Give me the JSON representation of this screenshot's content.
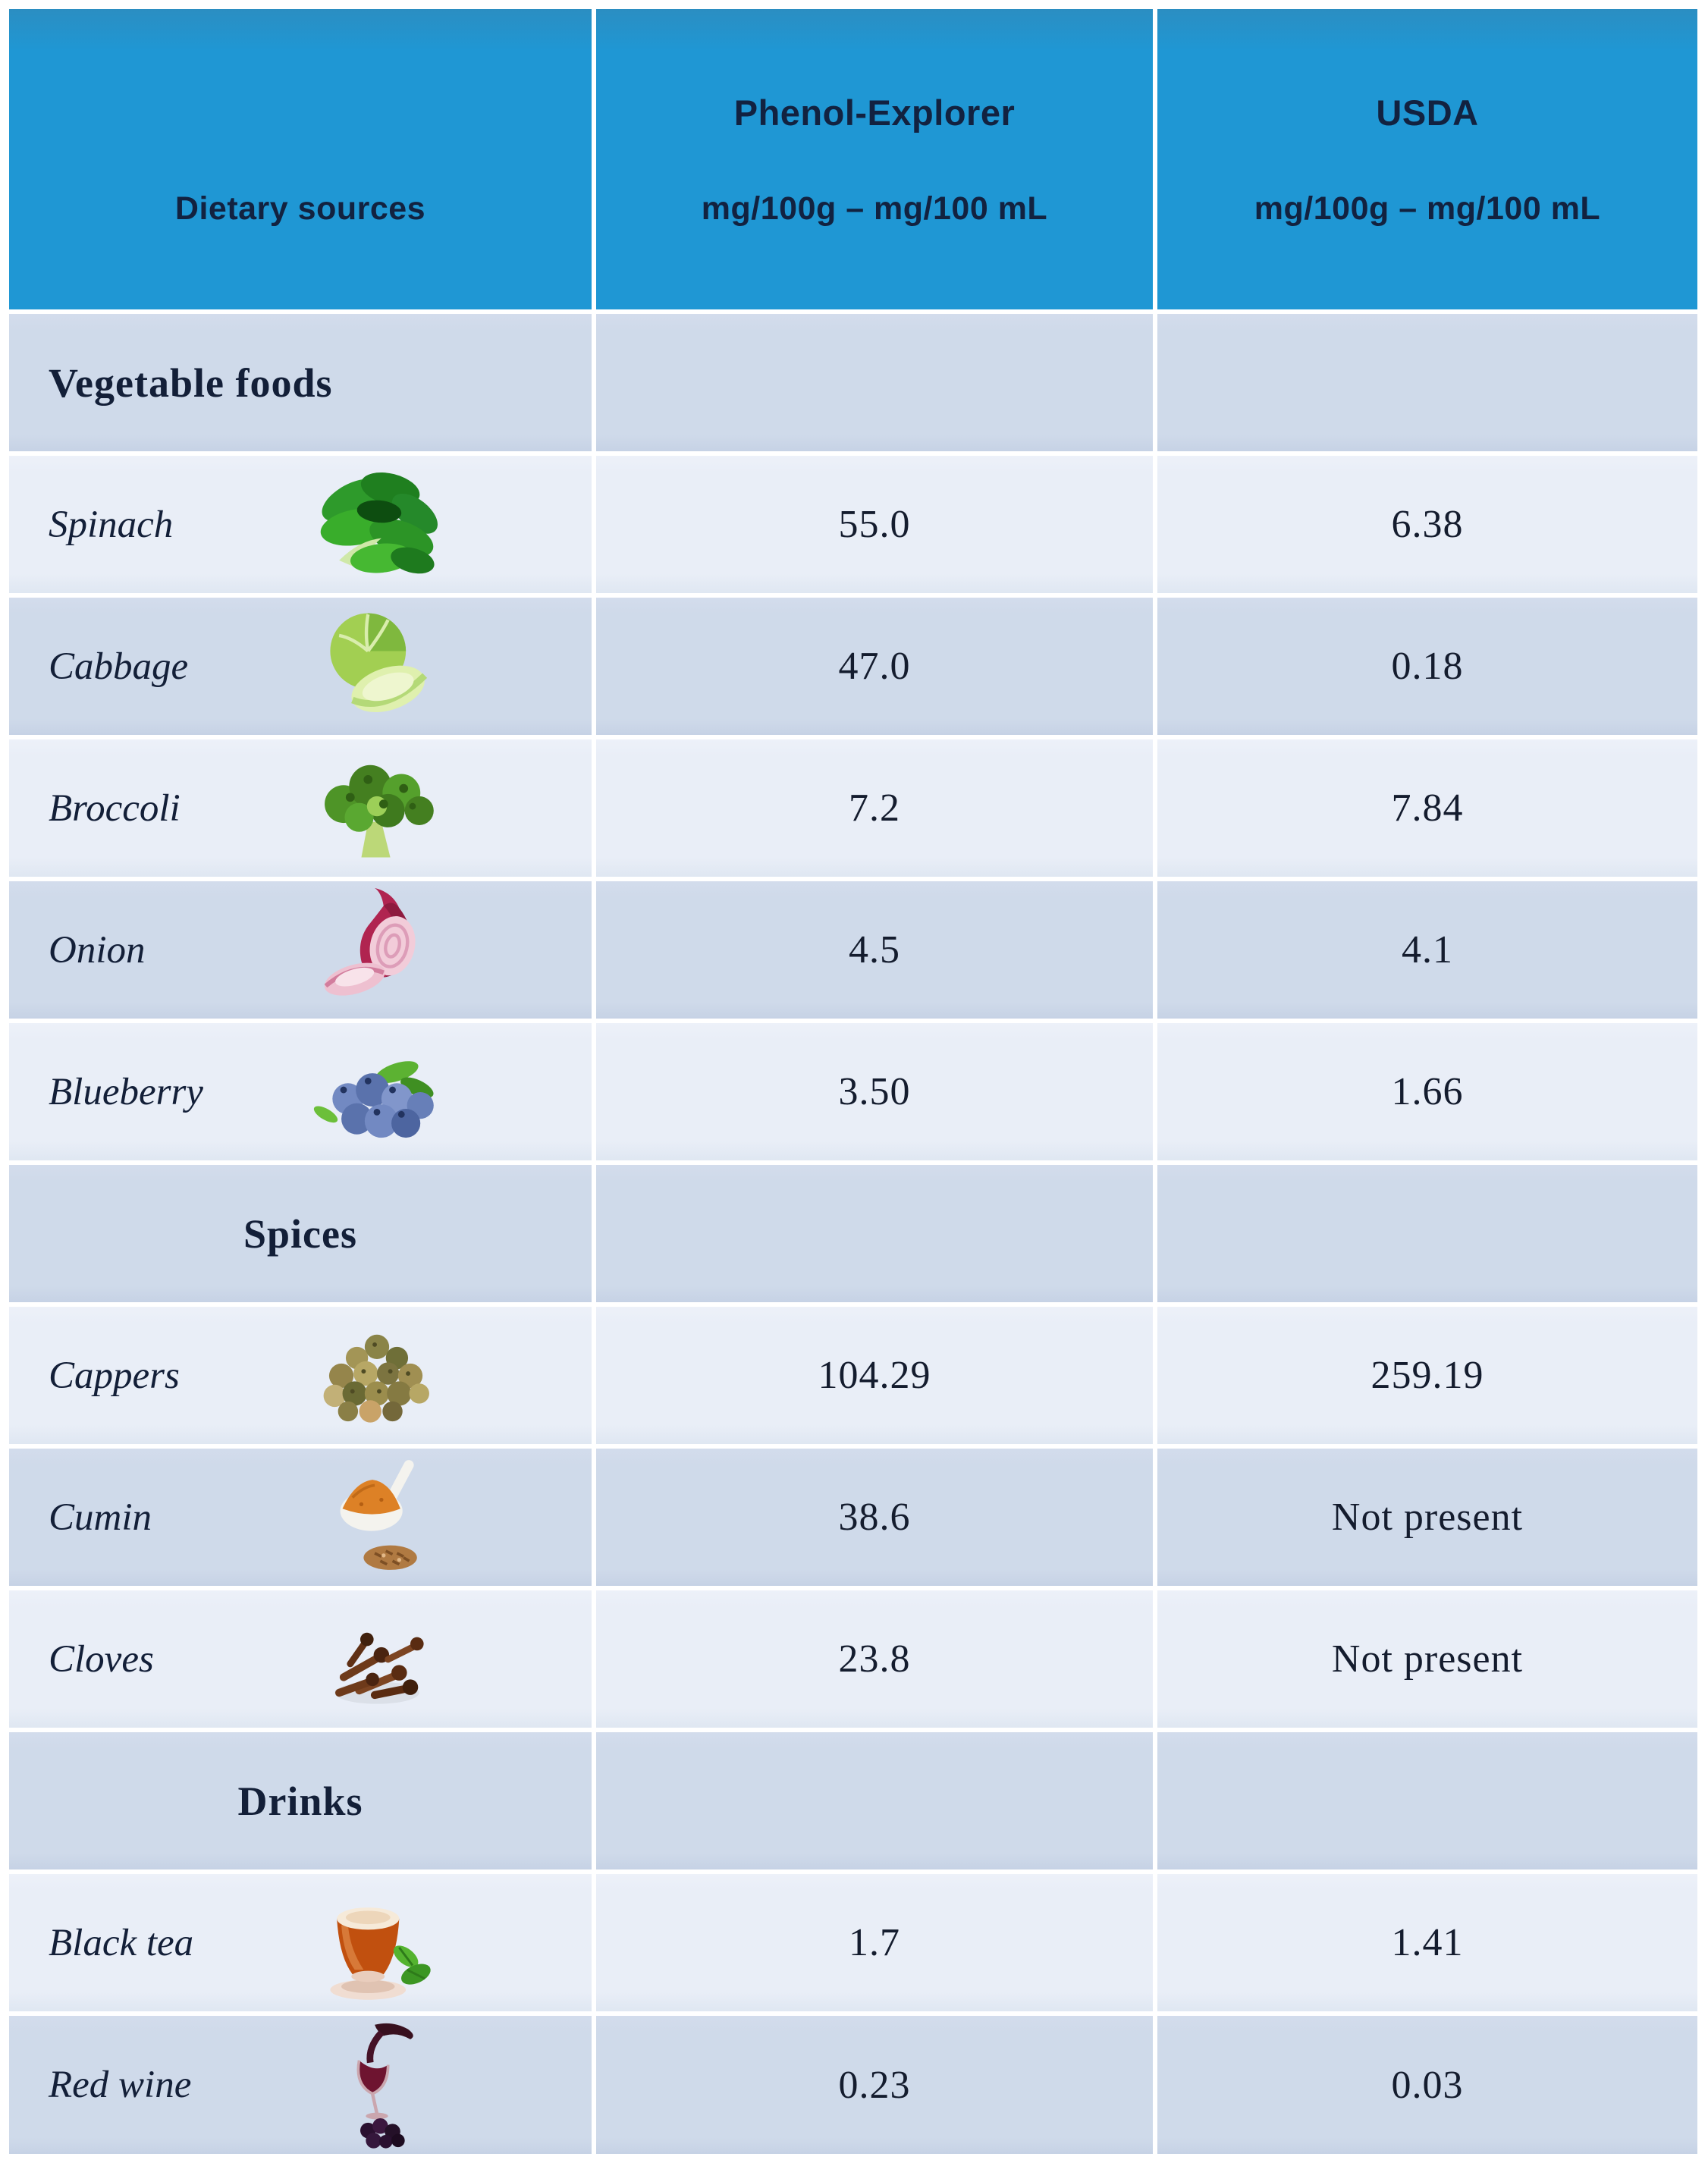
{
  "colors": {
    "header_bg": "#1f97d4",
    "header_bg_top": "#2b8ec2",
    "header_text": "#122240",
    "row_light": "#e9eef7",
    "row_dark": "#cfdaea",
    "gap_color": "#ffffff",
    "text": "#131f38",
    "value_text": "#141c2e"
  },
  "header": {
    "cells": [
      {
        "line1": "",
        "line2": "Dietary sources"
      },
      {
        "line1": "Phenol-Explorer",
        "line2": "mg/100g – mg/100 mL"
      },
      {
        "line1": "USDA",
        "line2": "mg/100g – mg/100 mL"
      }
    ]
  },
  "sections": [
    {
      "label": "Vegetable foods",
      "label_align": "left",
      "rows": [
        {
          "name": "Spinach",
          "icon": "spinach-icon",
          "phenol_explorer": "55.0",
          "usda": "6.38"
        },
        {
          "name": "Cabbage",
          "icon": "cabbage-icon",
          "phenol_explorer": "47.0",
          "usda": "0.18"
        },
        {
          "name": "Broccoli",
          "icon": "broccoli-icon",
          "phenol_explorer": "7.2",
          "usda": "7.84"
        },
        {
          "name": "Onion",
          "icon": "onion-icon",
          "phenol_explorer": "4.5",
          "usda": "4.1"
        },
        {
          "name": "Blueberry",
          "icon": "blueberry-icon",
          "phenol_explorer": "3.50",
          "usda": "1.66"
        }
      ]
    },
    {
      "label": "Spices",
      "label_align": "center",
      "rows": [
        {
          "name": "Cappers",
          "icon": "capers-icon",
          "phenol_explorer": "104.29",
          "usda": "259.19"
        },
        {
          "name": "Cumin",
          "icon": "cumin-icon",
          "phenol_explorer": "38.6",
          "usda": "Not present"
        },
        {
          "name": "Cloves",
          "icon": "cloves-icon",
          "phenol_explorer": "23.8",
          "usda": "Not present"
        }
      ]
    },
    {
      "label": "Drinks",
      "label_align": "center",
      "rows": [
        {
          "name": "Black tea",
          "icon": "black-tea-icon",
          "phenol_explorer": "1.7",
          "usda": "1.41"
        },
        {
          "name": "Red wine",
          "icon": "red-wine-icon",
          "phenol_explorer": "0.23",
          "usda": "0.03"
        }
      ]
    }
  ],
  "chart_data": {
    "type": "table",
    "columns": [
      "Dietary sources",
      "Phenol-Explorer mg/100g – mg/100 mL",
      "USDA mg/100g – mg/100 mL"
    ],
    "rows": [
      {
        "section": "Vegetable foods",
        "name": "Spinach",
        "phenol_explorer": 55.0,
        "usda": 6.38
      },
      {
        "section": "Vegetable foods",
        "name": "Cabbage",
        "phenol_explorer": 47.0,
        "usda": 0.18
      },
      {
        "section": "Vegetable foods",
        "name": "Broccoli",
        "phenol_explorer": 7.2,
        "usda": 7.84
      },
      {
        "section": "Vegetable foods",
        "name": "Onion",
        "phenol_explorer": 4.5,
        "usda": 4.1
      },
      {
        "section": "Vegetable foods",
        "name": "Blueberry",
        "phenol_explorer": 3.5,
        "usda": 1.66
      },
      {
        "section": "Spices",
        "name": "Cappers",
        "phenol_explorer": 104.29,
        "usda": 259.19
      },
      {
        "section": "Spices",
        "name": "Cumin",
        "phenol_explorer": 38.6,
        "usda": "Not present"
      },
      {
        "section": "Spices",
        "name": "Cloves",
        "phenol_explorer": 23.8,
        "usda": "Not present"
      },
      {
        "section": "Drinks",
        "name": "Black tea",
        "phenol_explorer": 1.7,
        "usda": 1.41
      },
      {
        "section": "Drinks",
        "name": "Red wine",
        "phenol_explorer": 0.23,
        "usda": 0.03
      }
    ]
  }
}
